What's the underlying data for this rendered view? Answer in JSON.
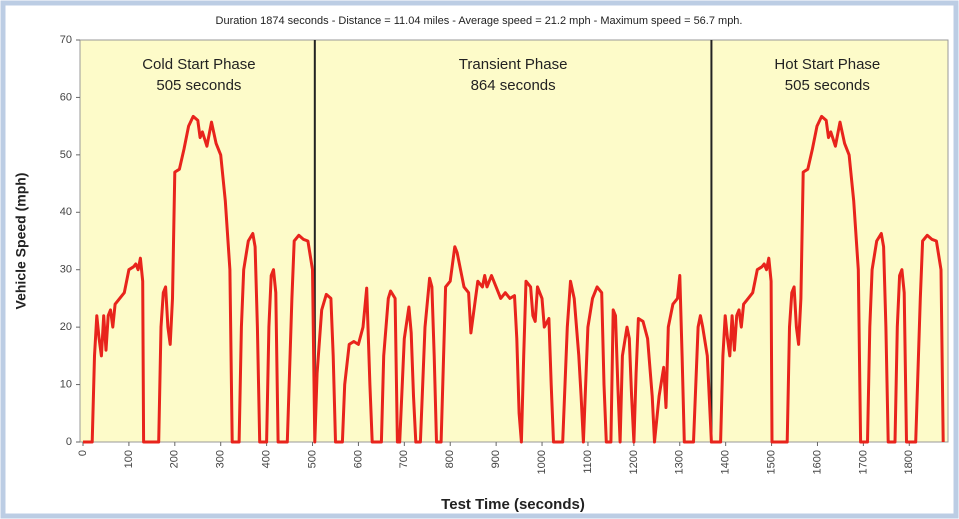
{
  "chart_data": {
    "type": "line",
    "title": "Duration 1874 seconds - Distance = 11.04 miles - Average speed = 21.2 mph - Maximum speed = 56.7 mph.",
    "xlabel": "Test Time (seconds)",
    "ylabel": "Vehicle Speed (mph)",
    "xlim": [
      0,
      1880
    ],
    "ylim": [
      0,
      70
    ],
    "xticks": [
      0,
      100,
      200,
      300,
      400,
      500,
      600,
      700,
      800,
      900,
      1000,
      1100,
      1200,
      1300,
      1400,
      1500,
      1600,
      1700,
      1800
    ],
    "yticks": [
      0,
      10,
      20,
      30,
      40,
      50,
      60,
      70
    ],
    "color": "#e8241c",
    "phases": [
      {
        "name": "Cold Start Phase",
        "duration": "505 seconds",
        "end": 505
      },
      {
        "name": "Transient Phase",
        "duration": "864 seconds",
        "end": 1369
      },
      {
        "name": "Hot Start Phase",
        "duration": "505 seconds",
        "end": 1874
      }
    ],
    "x": [
      0,
      20,
      25,
      30,
      35,
      40,
      45,
      50,
      55,
      60,
      65,
      70,
      80,
      90,
      100,
      110,
      115,
      120,
      125,
      130,
      132,
      165,
      170,
      175,
      180,
      185,
      190,
      195,
      200,
      210,
      220,
      230,
      240,
      250,
      255,
      260,
      270,
      280,
      290,
      300,
      310,
      320,
      325,
      340,
      345,
      350,
      360,
      370,
      375,
      380,
      385,
      400,
      405,
      410,
      415,
      420,
      425,
      445,
      455,
      460,
      470,
      480,
      490,
      500,
      505,
      510,
      520,
      530,
      540,
      545,
      550,
      565,
      570,
      580,
      590,
      600,
      610,
      618,
      625,
      630,
      650,
      655,
      665,
      670,
      680,
      685,
      690,
      700,
      710,
      715,
      720,
      725,
      735,
      745,
      755,
      760,
      765,
      770,
      780,
      790,
      800,
      810,
      815,
      825,
      830,
      840,
      845,
      850,
      860,
      870,
      875,
      880,
      890,
      900,
      910,
      920,
      930,
      940,
      945,
      950,
      955,
      960,
      965,
      975,
      980,
      985,
      990,
      1000,
      1005,
      1015,
      1020,
      1025,
      1045,
      1055,
      1062,
      1070,
      1080,
      1085,
      1090,
      1100,
      1110,
      1120,
      1130,
      1135,
      1140,
      1150,
      1155,
      1160,
      1165,
      1170,
      1175,
      1185,
      1190,
      1195,
      1200,
      1205,
      1210,
      1220,
      1230,
      1240,
      1245,
      1255,
      1265,
      1270,
      1275,
      1285,
      1295,
      1300,
      1305,
      1310,
      1330,
      1340,
      1345,
      1350,
      1360,
      1369,
      1389,
      1394,
      1399,
      1404,
      1409,
      1414,
      1419,
      1424,
      1429,
      1434,
      1439,
      1449,
      1459,
      1469,
      1479,
      1484,
      1489,
      1494,
      1499,
      1501,
      1534,
      1539,
      1544,
      1549,
      1554,
      1559,
      1564,
      1569,
      1579,
      1589,
      1599,
      1609,
      1619,
      1624,
      1629,
      1639,
      1649,
      1659,
      1669,
      1679,
      1689,
      1694,
      1709,
      1714,
      1719,
      1729,
      1739,
      1744,
      1749,
      1754,
      1769,
      1774,
      1779,
      1784,
      1789,
      1794,
      1814,
      1824,
      1829,
      1839,
      1849,
      1859,
      1869,
      1874
    ],
    "values": [
      0,
      0,
      15,
      22,
      18,
      15,
      22,
      16,
      22,
      23,
      20,
      24,
      25,
      26,
      30,
      30.5,
      31,
      30,
      32,
      28,
      0,
      0,
      20,
      26,
      27,
      20,
      17,
      25,
      47,
      47.5,
      51,
      55,
      56.7,
      56,
      53,
      54,
      51.5,
      55.7,
      52,
      50,
      42,
      30,
      0,
      0,
      20,
      30,
      35,
      36.3,
      34,
      20,
      0,
      0,
      20,
      29,
      30,
      26,
      0,
      0,
      25,
      35,
      36,
      35.3,
      35,
      30,
      0,
      12,
      23,
      25.7,
      25,
      15,
      0,
      0,
      10,
      17,
      17.5,
      17,
      20,
      26.8,
      10,
      0,
      0,
      15,
      25,
      26.3,
      25,
      0,
      0,
      18,
      23.5,
      19,
      8,
      0,
      0,
      20,
      28.5,
      27,
      15,
      0,
      0,
      27,
      28,
      34,
      33,
      29,
      27,
      26,
      19,
      22,
      28,
      27,
      29,
      27,
      29,
      27,
      25,
      26,
      25,
      25.5,
      18,
      5,
      0,
      15,
      28,
      27,
      22,
      21,
      27,
      25,
      20,
      21.5,
      10,
      0,
      0,
      20,
      28,
      25,
      15,
      8,
      0,
      20,
      25,
      27,
      26,
      10,
      0,
      0,
      23,
      22,
      10,
      0,
      15,
      20,
      18,
      8,
      0,
      12,
      21.5,
      21,
      18,
      8,
      0,
      8,
      13,
      6,
      20,
      24,
      25,
      29,
      15,
      0,
      0,
      20,
      22,
      20,
      15,
      0,
      0,
      15,
      22,
      18,
      15,
      22,
      16,
      22,
      23,
      20,
      24,
      25,
      26,
      30,
      30.5,
      31,
      30,
      32,
      28,
      0,
      0,
      20,
      26,
      27,
      20,
      17,
      25,
      47,
      47.5,
      51,
      55,
      56.7,
      56,
      53,
      54,
      51.5,
      55.7,
      52,
      50,
      42,
      30,
      0,
      0,
      20,
      30,
      35,
      36.3,
      34,
      20,
      0,
      0,
      20,
      29,
      30,
      26,
      0,
      0,
      25,
      35,
      36,
      35.3,
      35,
      30,
      0
    ]
  }
}
